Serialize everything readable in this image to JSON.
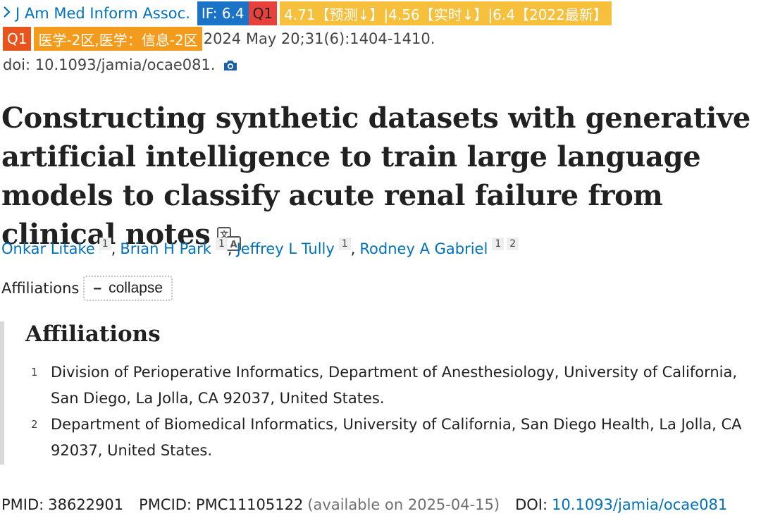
{
  "journal": {
    "name": "J Am Med Inform Assoc.",
    "if_badge": "IF: 6.4",
    "q_badge": "Q1",
    "rank_badge": "4.71【预测↓】|4.56【实时↓】|6.4【2022最新】",
    "q_badge2": "Q1",
    "zone_badge": "医学-2区,医学：信息-2区",
    "citation": "2024 May 20;31(6):1404-1410.",
    "doi_line": "doi: 10.1093/jamia/ocae081."
  },
  "title": "Constructing synthetic datasets with generative artificial intelligence to train large language models to classify acute renal failure from clinical notes",
  "authors": [
    {
      "name": "Onkar Litake",
      "sups": [
        "1"
      ]
    },
    {
      "name": "Brian H Park",
      "sups": [
        "1"
      ]
    },
    {
      "name": "Jeffrey L Tully",
      "sups": [
        "1"
      ]
    },
    {
      "name": "Rodney A Gabriel",
      "sups": [
        "1",
        "2"
      ]
    }
  ],
  "affiliations_toggle": {
    "label": "Affiliations",
    "button": "collapse"
  },
  "affiliations": {
    "heading": "Affiliations",
    "items": [
      {
        "num": "1",
        "text": "Division of Perioperative Informatics, Department of Anesthesiology, University of California, San Diego, La Jolla, CA 92037, United States."
      },
      {
        "num": "2",
        "text": "Department of Biomedical Informatics, University of California, San Diego Health, La Jolla, CA 92037, United States."
      }
    ]
  },
  "ids": {
    "pmid_label": "PMID:",
    "pmid": "38622901",
    "pmcid_label": "PMCID:",
    "pmcid": "PMC11105122",
    "pmcid_note": "(available on 2025-04-15)",
    "doi_label": "DOI:",
    "doi": "10.1093/jamia/ocae081"
  },
  "colors": {
    "link": "#0071bc",
    "if_badge": "#1a73c7",
    "q1_badge": "#e8413c",
    "rank_badge": "#f6bf3c",
    "zone_badge": "#f39b1c"
  }
}
